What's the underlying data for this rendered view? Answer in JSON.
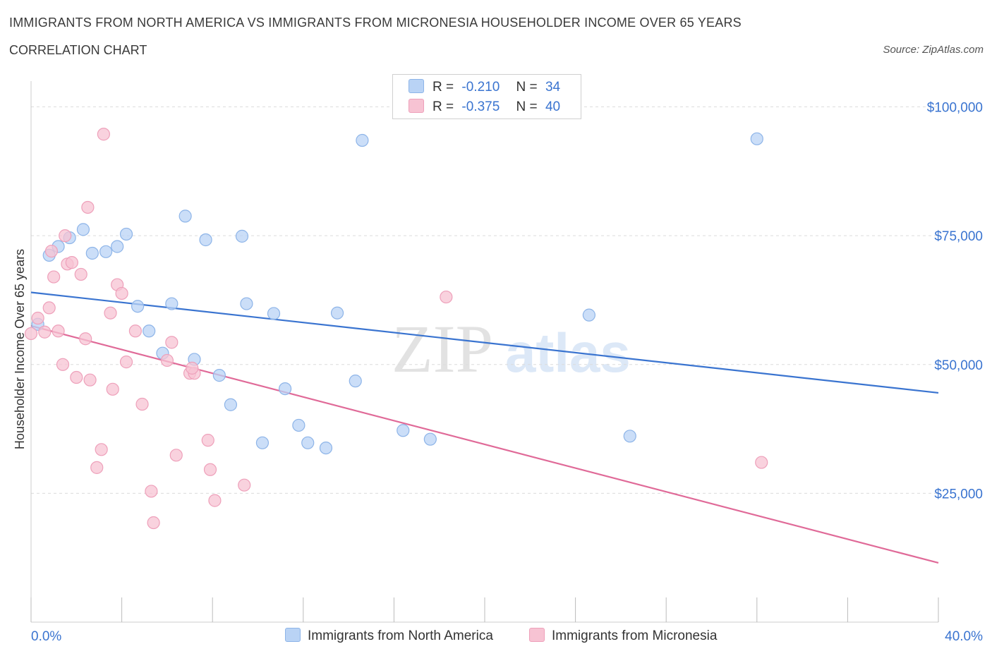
{
  "header": {
    "title": "IMMIGRANTS FROM NORTH AMERICA VS IMMIGRANTS FROM MICRONESIA HOUSEHOLDER INCOME OVER 65 YEARS",
    "subtitle": "CORRELATION CHART",
    "source": "Source: ZipAtlas.com"
  },
  "watermark": {
    "zip": "ZIP",
    "atlas": "atlas"
  },
  "legend": {
    "rows": [
      {
        "r_label": "R =",
        "r_value": "-0.210",
        "n_label": "N =",
        "n_value": "34"
      },
      {
        "r_label": "R =",
        "r_value": "-0.375",
        "n_label": "N =",
        "n_value": "40"
      }
    ]
  },
  "colors": {
    "blue_fill": "#b9d3f5",
    "blue_stroke": "#8db4e8",
    "blue_line": "#3a74d0",
    "pink_fill": "#f7c3d3",
    "pink_stroke": "#eea0ba",
    "pink_line": "#e06a98",
    "tick_label": "#3a74d0",
    "grid": "#dcdcdc"
  },
  "chart_data": {
    "type": "scatter",
    "title": "IMMIGRANTS FROM NORTH AMERICA VS IMMIGRANTS FROM MICRONESIA HOUSEHOLDER INCOME OVER 65 YEARS",
    "ylabel": "Householder Income Over 65 years",
    "xlim": [
      0,
      40
    ],
    "ylim": [
      0,
      105000
    ],
    "x_tick_labels": [
      "0.0%",
      "40.0%"
    ],
    "y_ticks": [
      {
        "value": 25000,
        "label": "$25,000"
      },
      {
        "value": 50000,
        "label": "$50,000"
      },
      {
        "value": 75000,
        "label": "$75,000"
      },
      {
        "value": 100000,
        "label": "$100,000"
      }
    ],
    "grid": true,
    "legend_position": "top-center",
    "series": [
      {
        "name": "Immigrants from North America",
        "color": "#b9d3f5",
        "points": [
          [
            0.3,
            57800
          ],
          [
            0.8,
            71200
          ],
          [
            1.2,
            72900
          ],
          [
            1.7,
            74600
          ],
          [
            2.3,
            76200
          ],
          [
            2.7,
            71600
          ],
          [
            3.3,
            71900
          ],
          [
            3.8,
            72900
          ],
          [
            4.2,
            75300
          ],
          [
            4.7,
            61300
          ],
          [
            5.2,
            56500
          ],
          [
            5.8,
            52200
          ],
          [
            6.2,
            61800
          ],
          [
            6.8,
            78800
          ],
          [
            7.2,
            51000
          ],
          [
            7.7,
            74200
          ],
          [
            8.3,
            47900
          ],
          [
            8.8,
            42200
          ],
          [
            9.3,
            74900
          ],
          [
            9.5,
            61800
          ],
          [
            10.2,
            34800
          ],
          [
            10.7,
            59900
          ],
          [
            11.2,
            45300
          ],
          [
            11.8,
            38200
          ],
          [
            12.2,
            34800
          ],
          [
            13.0,
            33800
          ],
          [
            13.5,
            60000
          ],
          [
            14.3,
            46800
          ],
          [
            14.6,
            93500
          ],
          [
            16.4,
            37200
          ],
          [
            17.6,
            35500
          ],
          [
            24.6,
            59600
          ],
          [
            26.4,
            36100
          ],
          [
            32.0,
            93800
          ]
        ],
        "trend": {
          "x": [
            0,
            40
          ],
          "y": [
            64000,
            44500
          ]
        }
      },
      {
        "name": "Immigrants from Micronesia",
        "color": "#f7c3d3",
        "points": [
          [
            0.0,
            56000
          ],
          [
            0.3,
            59000
          ],
          [
            0.6,
            56300
          ],
          [
            0.8,
            61000
          ],
          [
            0.9,
            72000
          ],
          [
            1.0,
            67000
          ],
          [
            1.2,
            56500
          ],
          [
            1.4,
            50000
          ],
          [
            1.5,
            75000
          ],
          [
            1.6,
            69500
          ],
          [
            1.8,
            69800
          ],
          [
            2.0,
            47500
          ],
          [
            2.2,
            67500
          ],
          [
            2.4,
            55000
          ],
          [
            2.5,
            80500
          ],
          [
            2.6,
            47000
          ],
          [
            2.9,
            30000
          ],
          [
            3.1,
            33500
          ],
          [
            3.2,
            94700
          ],
          [
            3.5,
            60000
          ],
          [
            3.6,
            45200
          ],
          [
            3.8,
            65500
          ],
          [
            4.0,
            63800
          ],
          [
            4.2,
            50500
          ],
          [
            4.6,
            56500
          ],
          [
            4.9,
            42300
          ],
          [
            5.3,
            25400
          ],
          [
            5.4,
            19300
          ],
          [
            6.0,
            50800
          ],
          [
            6.2,
            54300
          ],
          [
            6.4,
            32400
          ],
          [
            7.0,
            48300
          ],
          [
            7.2,
            48300
          ],
          [
            7.8,
            35300
          ],
          [
            7.9,
            29600
          ],
          [
            8.1,
            23600
          ],
          [
            9.4,
            26600
          ],
          [
            18.3,
            63100
          ],
          [
            32.2,
            31000
          ],
          [
            7.1,
            49300
          ]
        ],
        "trend": {
          "x": [
            0,
            40
          ],
          "y": [
            57500,
            11500
          ]
        }
      }
    ]
  }
}
